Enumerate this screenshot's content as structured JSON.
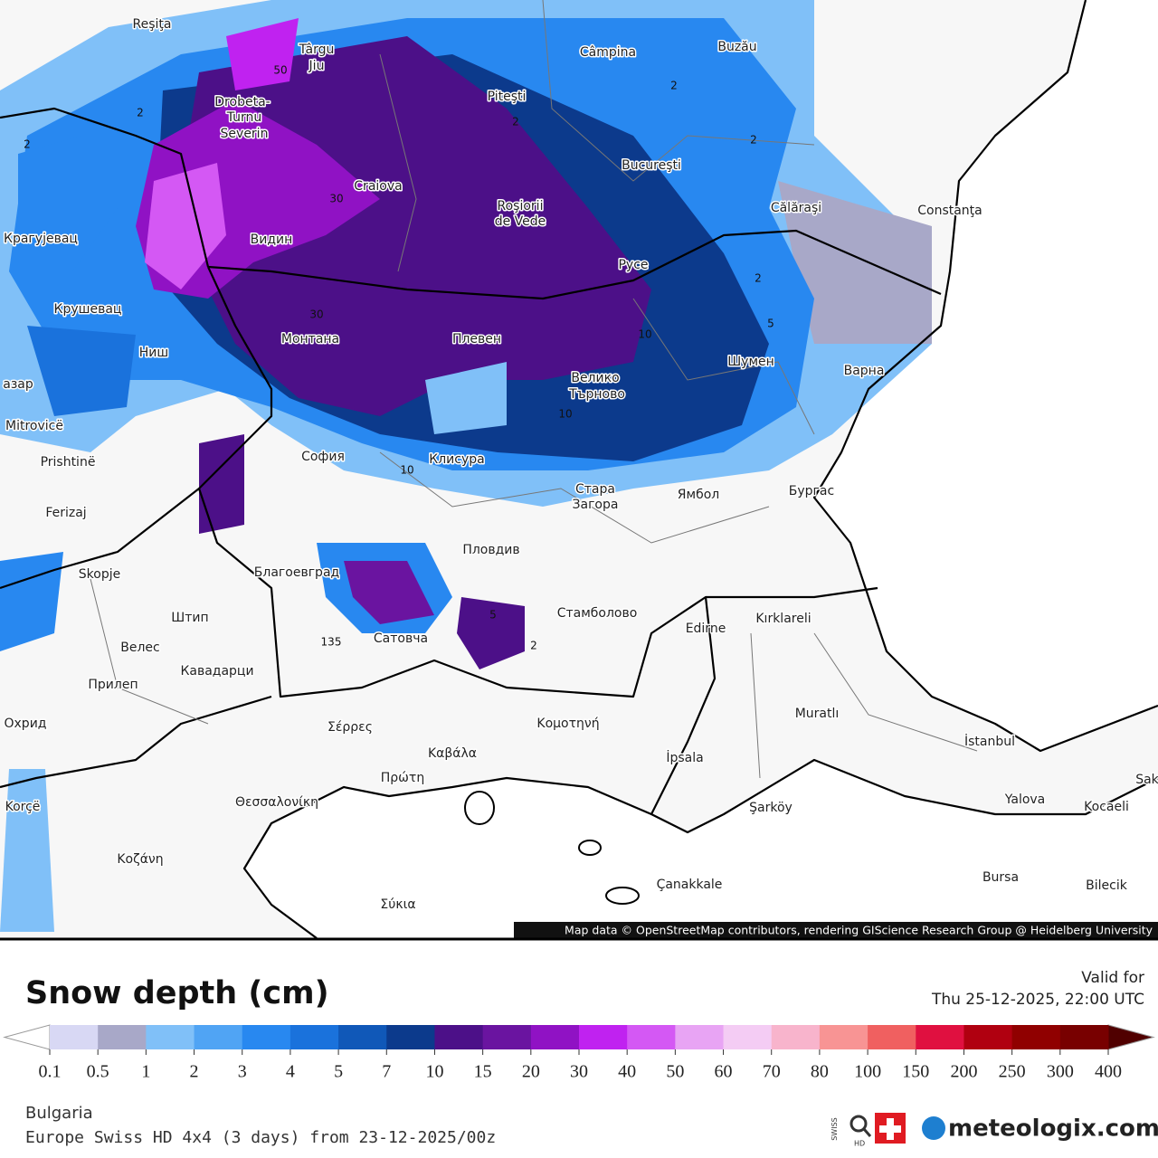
{
  "map": {
    "labels": [
      "Reşiţa",
      "Târgu",
      "Jiu",
      "Câmpina",
      "Buzău",
      "Piteşti",
      "Drobeta-",
      "Turnu",
      "Severin",
      "Bucureşti",
      "Craiova",
      "Roşiorii",
      "de Vede",
      "Călăraşi",
      "Constanţa",
      "Крагујевац",
      "Видин",
      "Русе",
      "Крушевац",
      "Ниш",
      "Монтана",
      "Плевен",
      "Шумен",
      "Варна",
      "Велико",
      "Търново",
      "азар",
      "Mitrovicë",
      "Prishtinë",
      "София",
      "Клисура",
      "Стара",
      "Загора",
      "Ямбол",
      "Бургас",
      "Ferizaj",
      "Пловдив",
      "Skopje",
      "Благоевград",
      "Штип",
      "Стамболово",
      "Edirne",
      "Kırklareli",
      "Велес",
      "Сатовча",
      "Кавадарци",
      "Прилеп",
      "Muratlı",
      "Охрид",
      "Σέρρες",
      "Κομοτηνή",
      "İstanbul",
      "İpsala",
      "Καβάλα",
      "Πρώτη",
      "Θεσσαλονίκη",
      "Korçë",
      "Yalova",
      "Kocaeli",
      "Şarköy",
      "Κοζάνη",
      "Bursa",
      "Bilecik",
      "Çanakkale",
      "Σύκια",
      "Sak"
    ],
    "contour_labels": [
      "2",
      "2",
      "2",
      "2",
      "2",
      "5",
      "10",
      "10",
      "30",
      "30",
      "50",
      "135",
      "10",
      "2",
      "5",
      "2"
    ],
    "attribution": "Map data © OpenStreetMap contributors, rendering GIScience Research Group @ Heidelberg University"
  },
  "legend": {
    "title": "Snow depth (cm)",
    "ticks": [
      0.1,
      0.5,
      1,
      2,
      3,
      4,
      5,
      7,
      10,
      15,
      20,
      30,
      40,
      50,
      60,
      70,
      80,
      100,
      150,
      200,
      250,
      300,
      400
    ],
    "colors": [
      "#d8d8f4",
      "#a8a8c8",
      "#80c0f8",
      "#50a4f4",
      "#2888f0",
      "#1a72dc",
      "#1058b8",
      "#0c3a8c",
      "#4c1088",
      "#6a14a0",
      "#9012c4",
      "#c022f0",
      "#d458f4",
      "#e8a4f4",
      "#f4ccf4",
      "#f8b4cc",
      "#f89494",
      "#f06060",
      "#e01040",
      "#b00010",
      "#900000",
      "#780000"
    ],
    "under_color": "#ffffff",
    "over_color": "#500000"
  },
  "valid": {
    "label": "Valid for",
    "time": "Thu 25-12-2025, 22:00 UTC"
  },
  "footer": {
    "region": "Bulgaria",
    "model": "Europe Swiss HD 4x4 (3 days) from 23-12-2025/00z",
    "brand": "meteologix.com",
    "badge_top": "SWISS",
    "badge_bottom": "HD"
  }
}
